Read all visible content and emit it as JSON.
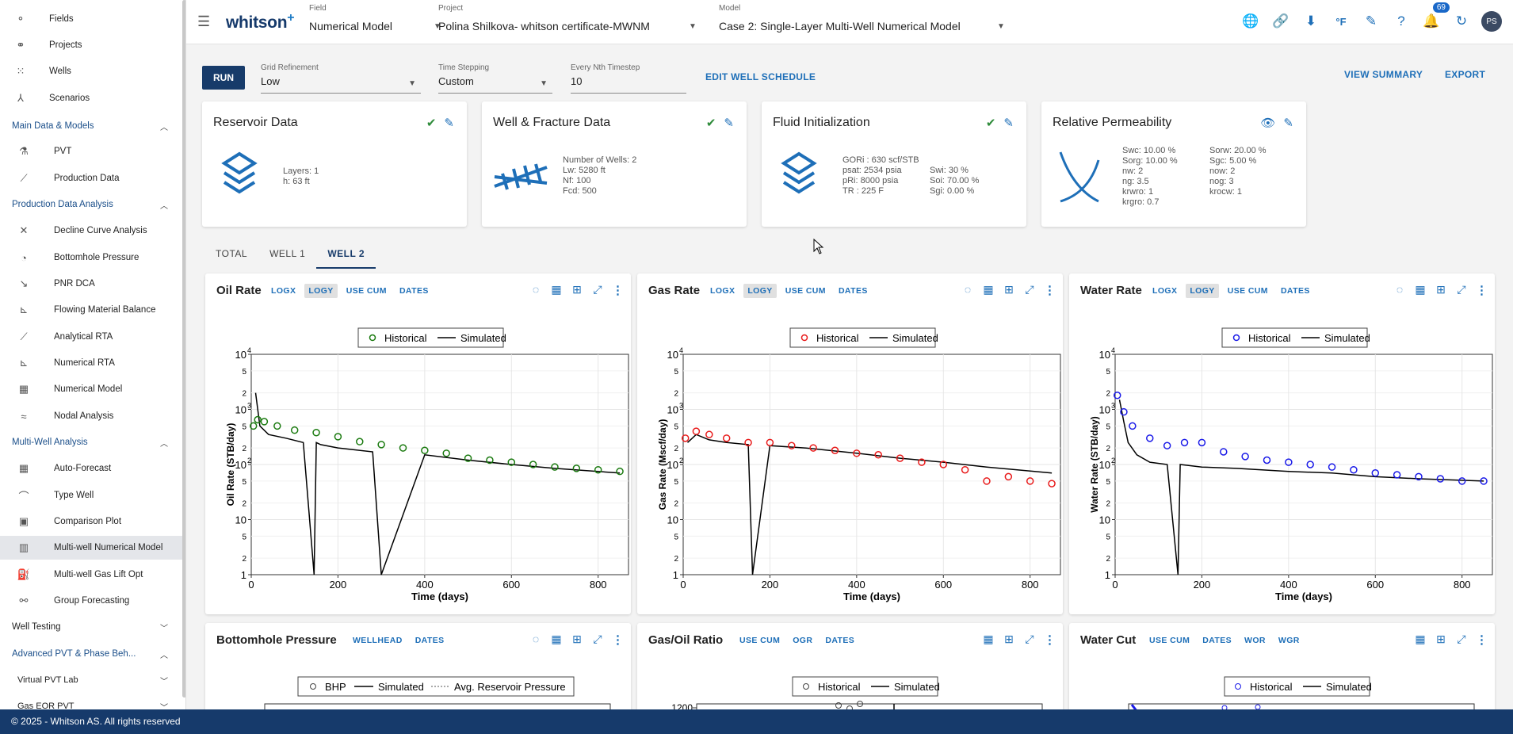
{
  "sidebar": {
    "top_items": [
      {
        "label": "Fields",
        "icon": "fields-icon"
      },
      {
        "label": "Projects",
        "icon": "projects-icon"
      },
      {
        "label": "Wells",
        "icon": "wells-icon"
      },
      {
        "label": "Scenarios",
        "icon": "scenarios-icon"
      }
    ],
    "sections": [
      {
        "label": "Main Data & Models",
        "items": [
          "PVT",
          "Production Data"
        ]
      },
      {
        "label": "Production Data Analysis",
        "items": [
          "Decline Curve Analysis",
          "Bottomhole Pressure",
          "PNR DCA",
          "Flowing Material Balance",
          "Analytical RTA",
          "Numerical RTA",
          "Numerical Model",
          "Nodal Analysis"
        ]
      },
      {
        "label": "Multi-Well Analysis",
        "items": [
          "Auto-Forecast",
          "Type Well",
          "Comparison Plot",
          "Multi-well Numerical Model",
          "Multi-well Gas Lift Opt",
          "Group Forecasting"
        ]
      }
    ],
    "well_testing": "Well Testing",
    "advanced": "Advanced PVT & Phase Beh...",
    "sub_items": [
      "Virtual PVT Lab",
      "Gas EOR PVT"
    ],
    "active_item": "Multi-well Numerical Model"
  },
  "topbar": {
    "field_label": "Field",
    "field_value": "Numerical Model",
    "project_label": "Project",
    "project_value": "Polina Shilkova- whitson certificate-MWNM",
    "model_label": "Model",
    "model_value": "Case 2: Single-Layer Multi-Well Numerical Model",
    "notification_count": "69",
    "avatar": "PS",
    "units_icon_text": "°F"
  },
  "logo": {
    "text": "whitson",
    "plus": "+"
  },
  "runbar": {
    "run": "RUN",
    "grid_refinement_label": "Grid Refinement",
    "grid_refinement_value": "Low",
    "time_stepping_label": "Time Stepping",
    "time_stepping_value": "Custom",
    "nth_label": "Every Nth Timestep",
    "nth_value": "10",
    "edit_schedule": "EDIT WELL SCHEDULE",
    "view_summary": "VIEW SUMMARY",
    "export": "EXPORT"
  },
  "cards": {
    "reservoir": {
      "title": "Reservoir Data",
      "layers": "Layers:  1",
      "h": "h:  63 ft"
    },
    "well_fracture": {
      "title": "Well & Fracture Data",
      "wells": "Number of Wells:  2",
      "lw": "Lw:  5280 ft",
      "nf": "Nf:  100",
      "fcd": "Fcd:  500"
    },
    "fluid": {
      "title": "Fluid Initialization",
      "gor": "GORi :  630 scf/STB",
      "psat": "psat:  2534 psia",
      "pri": "pRi:  8000 psia",
      "tr": "TR :  225 F",
      "swi": "Swi:  30 %",
      "soi": "Soi:  70.00 %",
      "sgi": "Sgi:  0.00 %"
    },
    "relperm": {
      "title": "Relative Permeability",
      "left": [
        "Swc: 10.00 %",
        "Sorg: 10.00 %",
        "nw:  2",
        "ng:  3.5",
        "krwro:  1",
        "krgro:  0.7"
      ],
      "right": [
        "Sorw:  20.00 %",
        "Sgc:  5.00 %",
        "now:  2",
        "nog:  3",
        "krocw:  1"
      ]
    }
  },
  "tabs": [
    "TOTAL",
    "WELL 1",
    "WELL 2"
  ],
  "active_tab": "WELL 2",
  "panels": {
    "oil": {
      "title": "Oil Rate",
      "buttons": [
        "LOGX",
        "LOGY",
        "USE CUM",
        "DATES"
      ],
      "active": "LOGY"
    },
    "gas": {
      "title": "Gas Rate",
      "buttons": [
        "LOGX",
        "LOGY",
        "USE CUM",
        "DATES"
      ],
      "active": "LOGY"
    },
    "water": {
      "title": "Water Rate",
      "buttons": [
        "LOGX",
        "LOGY",
        "USE CUM",
        "DATES"
      ],
      "active": "LOGY"
    },
    "bhp": {
      "title": "Bottomhole Pressure",
      "buttons": [
        "WELLHEAD",
        "DATES"
      ],
      "legend": [
        "BHP",
        "Simulated",
        "Avg. Reservoir Pressure"
      ],
      "y_visible_tick": ""
    },
    "gor": {
      "title": "Gas/Oil Ratio",
      "buttons": [
        "USE CUM",
        "OGR",
        "DATES"
      ],
      "legend": [
        "Historical",
        "Simulated"
      ],
      "y_visible_tick": "1200"
    },
    "wc": {
      "title": "Water Cut",
      "buttons": [
        "USE CUM",
        "DATES",
        "WOR",
        "WGR"
      ],
      "legend": [
        "Historical",
        "Simulated"
      ]
    }
  },
  "footer": "© 2025 - Whitson AS. All rights reserved",
  "colors": {
    "oil": "#1a7a0f",
    "gas": "#e81a1a",
    "water": "#1a1ae8",
    "navy": "#163a6b",
    "accent": "#1e6fb8"
  },
  "chart_data": [
    {
      "type": "scatter",
      "title": "Oil Rate",
      "xlabel": "Time (days)",
      "ylabel": "Oil Rate (STB/day)",
      "xlim": [
        0,
        870
      ],
      "ylim": [
        1,
        10000
      ],
      "y_scale": "log",
      "x_ticks": [
        0,
        200,
        400,
        600,
        800
      ],
      "legend": [
        "Historical",
        "Simulated"
      ],
      "series": [
        {
          "name": "Historical",
          "style": "open-circles",
          "color": "#1a7a0f",
          "x": [
            5,
            15,
            30,
            60,
            100,
            150,
            200,
            250,
            300,
            350,
            400,
            450,
            500,
            550,
            600,
            650,
            700,
            750,
            800,
            850
          ],
          "values": [
            500,
            650,
            600,
            500,
            420,
            380,
            320,
            260,
            230,
            200,
            180,
            160,
            130,
            120,
            110,
            100,
            90,
            85,
            80,
            75
          ]
        },
        {
          "name": "Simulated",
          "style": "line",
          "color": "#000000",
          "x": [
            10,
            20,
            40,
            80,
            120,
            145,
            150,
            160,
            200,
            280,
            300,
            400,
            500,
            600,
            700,
            850
          ],
          "values": [
            2000,
            500,
            350,
            300,
            250,
            1,
            250,
            230,
            200,
            170,
            1,
            150,
            120,
            100,
            85,
            70
          ]
        }
      ]
    },
    {
      "type": "scatter",
      "title": "Gas Rate",
      "xlabel": "Time (days)",
      "ylabel": "Gas Rate (Mscf/day)",
      "xlim": [
        0,
        870
      ],
      "ylim": [
        1,
        10000
      ],
      "y_scale": "log",
      "x_ticks": [
        0,
        200,
        400,
        600,
        800
      ],
      "legend": [
        "Historical",
        "Simulated"
      ],
      "series": [
        {
          "name": "Historical",
          "style": "open-circles",
          "color": "#e81a1a",
          "x": [
            5,
            30,
            60,
            100,
            150,
            200,
            250,
            300,
            350,
            400,
            450,
            500,
            550,
            600,
            650,
            700,
            750,
            800,
            850
          ],
          "values": [
            300,
            400,
            350,
            300,
            250,
            250,
            220,
            200,
            180,
            160,
            150,
            130,
            110,
            100,
            80,
            50,
            60,
            50,
            45
          ]
        },
        {
          "name": "Simulated",
          "style": "line",
          "color": "#000000",
          "x": [
            10,
            30,
            60,
            100,
            150,
            160,
            200,
            280,
            400,
            500,
            600,
            700,
            850
          ],
          "values": [
            250,
            350,
            280,
            250,
            230,
            1,
            220,
            200,
            160,
            130,
            110,
            90,
            70
          ]
        }
      ]
    },
    {
      "type": "scatter",
      "title": "Water Rate",
      "xlabel": "Time (days)",
      "ylabel": "Water Rate (STB/day)",
      "xlim": [
        0,
        870
      ],
      "ylim": [
        1,
        10000
      ],
      "y_scale": "log",
      "x_ticks": [
        0,
        200,
        400,
        600,
        800
      ],
      "legend": [
        "Historical",
        "Simulated"
      ],
      "series": [
        {
          "name": "Historical",
          "style": "open-circles",
          "color": "#1a1ae8",
          "x": [
            5,
            20,
            40,
            80,
            120,
            160,
            200,
            250,
            300,
            350,
            400,
            450,
            500,
            550,
            600,
            650,
            700,
            750,
            800,
            850
          ],
          "values": [
            1800,
            900,
            500,
            300,
            220,
            250,
            250,
            170,
            140,
            120,
            110,
            100,
            90,
            80,
            70,
            65,
            60,
            55,
            50,
            50
          ]
        },
        {
          "name": "Simulated",
          "style": "line",
          "color": "#000000",
          "x": [
            10,
            20,
            30,
            50,
            80,
            120,
            145,
            150,
            200,
            280,
            400,
            500,
            600,
            700,
            850
          ],
          "values": [
            1500,
            600,
            250,
            150,
            110,
            100,
            1,
            100,
            90,
            85,
            75,
            70,
            60,
            55,
            50
          ]
        }
      ]
    }
  ]
}
